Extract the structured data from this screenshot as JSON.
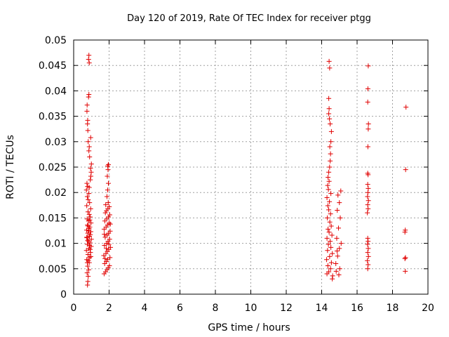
{
  "chart_data": {
    "type": "scatter",
    "title": "Day 120 of 2019, Rate Of TEC Index for receiver ptgg",
    "xlabel": "GPS time / hours",
    "ylabel": "ROTI / TECUs",
    "xlim": [
      0,
      20
    ],
    "ylim": [
      0,
      0.05
    ],
    "xticks": [
      "0",
      "2",
      "4",
      "6",
      "8",
      "10",
      "12",
      "14",
      "16",
      "18",
      "20"
    ],
    "yticks": [
      "0",
      "0.005",
      "0.01",
      "0.015",
      "0.02",
      "0.025",
      "0.03",
      "0.035",
      "0.04",
      "0.045",
      "0.05"
    ],
    "grid": true,
    "marker": "+",
    "color": "#e00000",
    "series": [
      {
        "name": "ROTI",
        "points": [
          [
            0.78,
            0.0018
          ],
          [
            0.8,
            0.0025
          ],
          [
            0.82,
            0.0035
          ],
          [
            0.76,
            0.0042
          ],
          [
            0.85,
            0.0048
          ],
          [
            0.79,
            0.0055
          ],
          [
            0.88,
            0.0062
          ],
          [
            0.74,
            0.0068
          ],
          [
            0.9,
            0.0072
          ],
          [
            0.81,
            0.0078
          ],
          [
            0.95,
            0.0082
          ],
          [
            0.72,
            0.0086
          ],
          [
            0.86,
            0.009
          ],
          [
            0.99,
            0.0094
          ],
          [
            0.77,
            0.0098
          ],
          [
            0.92,
            0.0101
          ],
          [
            0.83,
            0.0104
          ],
          [
            1.0,
            0.0108
          ],
          [
            0.75,
            0.0111
          ],
          [
            0.89,
            0.0114
          ],
          [
            0.94,
            0.0117
          ],
          [
            0.8,
            0.012
          ],
          [
            0.97,
            0.0123
          ],
          [
            0.73,
            0.0126
          ],
          [
            0.87,
            0.0129
          ],
          [
            0.91,
            0.0132
          ],
          [
            0.78,
            0.0136
          ],
          [
            0.98,
            0.014
          ],
          [
            0.84,
            0.0144
          ],
          [
            0.76,
            0.0148
          ],
          [
            0.93,
            0.0152
          ],
          [
            0.88,
            0.0157
          ],
          [
            0.81,
            0.0162
          ],
          [
            0.96,
            0.0168
          ],
          [
            0.74,
            0.0174
          ],
          [
            0.9,
            0.018
          ],
          [
            0.82,
            0.0186
          ],
          [
            0.77,
            0.0192
          ],
          [
            0.86,
            0.0198
          ],
          [
            0.72,
            0.0205
          ],
          [
            0.79,
            0.0212
          ],
          [
            0.75,
            0.0218
          ],
          [
            0.88,
            0.021
          ],
          [
            0.94,
            0.0225
          ],
          [
            0.97,
            0.0232
          ],
          [
            0.99,
            0.024
          ],
          [
            0.95,
            0.0248
          ],
          [
            1.0,
            0.0256
          ],
          [
            0.9,
            0.027
          ],
          [
            0.86,
            0.0282
          ],
          [
            0.88,
            0.029
          ],
          [
            0.82,
            0.03
          ],
          [
            0.96,
            0.0308
          ],
          [
            0.8,
            0.0322
          ],
          [
            0.78,
            0.0335
          ],
          [
            0.79,
            0.0342
          ],
          [
            0.75,
            0.036
          ],
          [
            0.76,
            0.0372
          ],
          [
            0.84,
            0.0388
          ],
          [
            0.86,
            0.0393
          ],
          [
            0.88,
            0.0455
          ],
          [
            0.84,
            0.0462
          ],
          [
            0.86,
            0.047
          ],
          [
            0.77,
            0.0062
          ],
          [
            0.83,
            0.0066
          ],
          [
            0.93,
            0.0088
          ],
          [
            0.79,
            0.0106
          ],
          [
            0.85,
            0.0125
          ],
          [
            0.91,
            0.0146
          ],
          [
            0.97,
            0.0074
          ],
          [
            0.74,
            0.0112
          ],
          [
            0.89,
            0.0096
          ],
          [
            0.81,
            0.0134
          ],
          [
            1.72,
            0.004
          ],
          [
            1.8,
            0.0044
          ],
          [
            1.88,
            0.0048
          ],
          [
            1.95,
            0.0052
          ],
          [
            2.02,
            0.0056
          ],
          [
            1.75,
            0.006
          ],
          [
            1.84,
            0.0064
          ],
          [
            1.92,
            0.0068
          ],
          [
            2.05,
            0.0072
          ],
          [
            1.7,
            0.0076
          ],
          [
            1.82,
            0.008
          ],
          [
            1.9,
            0.0084
          ],
          [
            1.98,
            0.0088
          ],
          [
            2.08,
            0.0092
          ],
          [
            1.74,
            0.0096
          ],
          [
            1.86,
            0.01
          ],
          [
            1.94,
            0.0104
          ],
          [
            2.03,
            0.0108
          ],
          [
            1.78,
            0.0112
          ],
          [
            1.89,
            0.0116
          ],
          [
            1.97,
            0.012
          ],
          [
            2.06,
            0.0124
          ],
          [
            1.72,
            0.0128
          ],
          [
            1.83,
            0.0132
          ],
          [
            1.91,
            0.0136
          ],
          [
            2.0,
            0.014
          ],
          [
            1.76,
            0.0144
          ],
          [
            1.87,
            0.0148
          ],
          [
            1.96,
            0.0152
          ],
          [
            2.04,
            0.0156
          ],
          [
            1.79,
            0.016
          ],
          [
            1.85,
            0.0164
          ],
          [
            1.93,
            0.0168
          ],
          [
            2.01,
            0.0172
          ],
          [
            1.81,
            0.0176
          ],
          [
            1.95,
            0.018
          ],
          [
            1.88,
            0.0192
          ],
          [
            1.92,
            0.0205
          ],
          [
            1.96,
            0.0218
          ],
          [
            1.9,
            0.0232
          ],
          [
            1.94,
            0.0245
          ],
          [
            1.92,
            0.0252
          ],
          [
            1.96,
            0.0255
          ],
          [
            1.77,
            0.007
          ],
          [
            1.99,
            0.0098
          ],
          [
            1.73,
            0.0118
          ],
          [
            2.07,
            0.0138
          ],
          [
            1.84,
            0.009
          ],
          [
            14.3,
            0.004
          ],
          [
            14.4,
            0.0044
          ],
          [
            14.5,
            0.005
          ],
          [
            14.35,
            0.0056
          ],
          [
            14.55,
            0.0062
          ],
          [
            14.28,
            0.0068
          ],
          [
            14.45,
            0.0074
          ],
          [
            14.6,
            0.008
          ],
          [
            14.33,
            0.0086
          ],
          [
            14.52,
            0.0092
          ],
          [
            14.38,
            0.0098
          ],
          [
            14.48,
            0.0104
          ],
          [
            14.3,
            0.011
          ],
          [
            14.58,
            0.0116
          ],
          [
            14.42,
            0.0122
          ],
          [
            14.36,
            0.0128
          ],
          [
            14.54,
            0.0134
          ],
          [
            14.46,
            0.0142
          ],
          [
            14.32,
            0.015
          ],
          [
            14.5,
            0.0158
          ],
          [
            14.4,
            0.0166
          ],
          [
            14.35,
            0.0174
          ],
          [
            14.44,
            0.0182
          ],
          [
            14.3,
            0.019
          ],
          [
            14.52,
            0.0198
          ],
          [
            14.38,
            0.0206
          ],
          [
            14.34,
            0.0214
          ],
          [
            14.42,
            0.0222
          ],
          [
            14.36,
            0.023
          ],
          [
            14.4,
            0.024
          ],
          [
            14.45,
            0.025
          ],
          [
            14.48,
            0.0262
          ],
          [
            14.5,
            0.0276
          ],
          [
            14.46,
            0.029
          ],
          [
            14.52,
            0.03
          ],
          [
            14.55,
            0.032
          ],
          [
            14.48,
            0.0335
          ],
          [
            14.44,
            0.0345
          ],
          [
            14.4,
            0.0355
          ],
          [
            14.42,
            0.0365
          ],
          [
            14.4,
            0.0385
          ],
          [
            14.45,
            0.0445
          ],
          [
            14.42,
            0.0458
          ],
          [
            14.6,
            0.003
          ],
          [
            14.62,
            0.0036
          ],
          [
            14.8,
            0.006
          ],
          [
            14.9,
            0.0075
          ],
          [
            15.0,
            0.009
          ],
          [
            14.85,
            0.011
          ],
          [
            14.95,
            0.013
          ],
          [
            15.05,
            0.015
          ],
          [
            14.88,
            0.0165
          ],
          [
            15.0,
            0.018
          ],
          [
            14.92,
            0.0195
          ],
          [
            15.08,
            0.0203
          ],
          [
            14.82,
            0.0045
          ],
          [
            14.97,
            0.0038
          ],
          [
            15.02,
            0.005
          ],
          [
            14.87,
            0.0085
          ],
          [
            15.1,
            0.01
          ],
          [
            16.6,
            0.005
          ],
          [
            16.62,
            0.0058
          ],
          [
            16.58,
            0.0066
          ],
          [
            16.64,
            0.0074
          ],
          [
            16.6,
            0.0082
          ],
          [
            16.63,
            0.009
          ],
          [
            16.59,
            0.0098
          ],
          [
            16.62,
            0.0104
          ],
          [
            16.6,
            0.011
          ],
          [
            16.58,
            0.016
          ],
          [
            16.62,
            0.0168
          ],
          [
            16.6,
            0.0176
          ],
          [
            16.64,
            0.0184
          ],
          [
            16.59,
            0.0192
          ],
          [
            16.61,
            0.02
          ],
          [
            16.63,
            0.0208
          ],
          [
            16.6,
            0.0216
          ],
          [
            16.62,
            0.0235
          ],
          [
            16.6,
            0.0238
          ],
          [
            16.61,
            0.029
          ],
          [
            16.63,
            0.0325
          ],
          [
            16.64,
            0.0335
          ],
          [
            16.6,
            0.0378
          ],
          [
            16.61,
            0.0404
          ],
          [
            16.63,
            0.0449
          ],
          [
            18.72,
            0.0045
          ],
          [
            18.7,
            0.007
          ],
          [
            18.73,
            0.0072
          ],
          [
            18.7,
            0.0122
          ],
          [
            18.72,
            0.0126
          ],
          [
            18.74,
            0.0245
          ],
          [
            18.76,
            0.0368
          ]
        ]
      }
    ]
  }
}
